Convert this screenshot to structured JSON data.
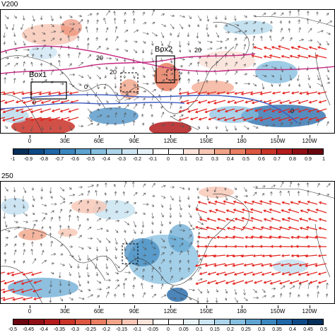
{
  "panels": [
    {
      "title": "V200",
      "lon_labels": [
        "0",
        "30E",
        "60E",
        "90E",
        "120E",
        "150E",
        "180",
        "150W",
        "120W"
      ],
      "colorbar": {
        "labels": [
          "-1",
          "-0.9",
          "-0.8",
          "-0.7",
          "-0.6",
          "-0.5",
          "-0.4",
          "-0.3",
          "-0.2",
          "-0.1",
          "0",
          "0.1",
          "0.2",
          "0.3",
          "0.4",
          "0.5",
          "0.6",
          "0.7",
          "0.8",
          "0.9",
          "1"
        ],
        "colors": [
          "#06305a",
          "#0d4a85",
          "#1f67a8",
          "#3a86bf",
          "#5ea4d2",
          "#86bfe0",
          "#acd4ea",
          "#cde5f2",
          "#e6f2f8",
          "#ffffff",
          "#ffffff",
          "#fbe3da",
          "#f7c6b4",
          "#f2a488",
          "#e97e62",
          "#dc5640",
          "#c93328",
          "#b31b1c",
          "#900f16",
          "#6a0610"
        ]
      },
      "boxes": [
        {
          "label": "Box1"
        },
        {
          "label": "Box2"
        }
      ],
      "contour_labels": [
        "20",
        "20",
        "20",
        "0",
        "0",
        "0"
      ]
    },
    {
      "title": "250",
      "lon_labels": [
        "0",
        "30E",
        "60E",
        "90E",
        "120E",
        "150E",
        "180",
        "150W",
        "120W"
      ],
      "colorbar": {
        "labels": [
          "-0.5",
          "-0.45",
          "-0.4",
          "-0.35",
          "-0.3",
          "-0.25",
          "-0.2",
          "-0.15",
          "-0.1",
          "-0.05",
          "0",
          "0.05",
          "0.1",
          "0.15",
          "0.2",
          "0.25",
          "0.3",
          "0.35",
          "0.4",
          "0.45",
          "0.5"
        ],
        "colors": [
          "#6a0610",
          "#900f16",
          "#b31b1c",
          "#c93328",
          "#dc5640",
          "#e97e62",
          "#f2a488",
          "#f7c6b4",
          "#fbe3da",
          "#ffffff",
          "#ffffff",
          "#e6f2f8",
          "#cde5f2",
          "#acd4ea",
          "#86bfe0",
          "#5ea4d2",
          "#3a86bf",
          "#1f67a8",
          "#0d4a85",
          "#06305a"
        ]
      }
    }
  ]
}
